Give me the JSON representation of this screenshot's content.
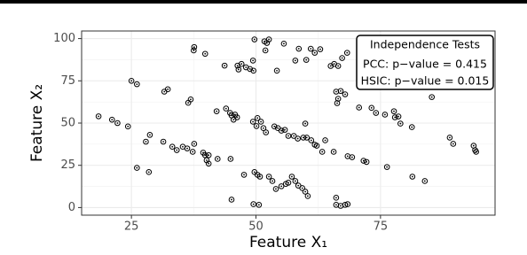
{
  "chart_data": {
    "type": "scatter",
    "x_label": "Feature X₁",
    "y_label": "Feature X₂",
    "legend_title": "Independence Tests",
    "annotations": [
      "PCC: p−value = 0.415",
      "HSIC: p−value = 0.015"
    ],
    "legend_position": "top-right",
    "xlim": [
      15,
      98
    ],
    "ylim": [
      -4.5,
      104.5
    ],
    "xticks": [
      25,
      50,
      75
    ],
    "yticks": [
      0,
      25,
      50,
      75,
      100
    ],
    "grid": true,
    "color": "#000000",
    "series": [
      {
        "name": null,
        "x": [
          18.4,
          21.1,
          22.2,
          24.3,
          25,
          26.1,
          26.1,
          28.5,
          27.9,
          28.7,
          31.4,
          33.2,
          34.1,
          35.3,
          36.2,
          37.3,
          37.6,
          39.4,
          39.8,
          40.1,
          40.5,
          40.5,
          42.3,
          31.6,
          32.3,
          36.4,
          36.9,
          37.5,
          37.6,
          39.8,
          42.1,
          43.7,
          44,
          44.8,
          45.1,
          45.8,
          45.5,
          46.3,
          46.5,
          47.1,
          48,
          48.8,
          49.5,
          49.4,
          49.7,
          51.7,
          46.2,
          44.9,
          45.1,
          47.6,
          49.4,
          50.1,
          51,
          51.5,
          52,
          53.7,
          54.4,
          55.1,
          55.8,
          49.7,
          50.3,
          50.8,
          52.6,
          53.3,
          54,
          55.1,
          56,
          56.5,
          57.2,
          57.9,
          58.5,
          59.3,
          59.9,
          60.4,
          49.5,
          50.6,
          51.9,
          52.2,
          52.6,
          54.2,
          55.6,
          57.9,
          58.6,
          60.1,
          61,
          61.8,
          62.9,
          59.9,
          56.5,
          57.6,
          58.4,
          59.5,
          60.2,
          61.1,
          61.8,
          63.3,
          63.9,
          65.6,
          66.1,
          67,
          67.9,
          65,
          65.7,
          66.5,
          67.3,
          68.3,
          66.5,
          66.3,
          62.2,
          66.1,
          66.1,
          67,
          67.9,
          68.4,
          68.4,
          69.3,
          71.6,
          70.7,
          72.2,
          73.2,
          74.1,
          75.9,
          77.9,
          77.7,
          78.6,
          76.3,
          79,
          81.3,
          81.4,
          83.9,
          85.3,
          88.9,
          89.6,
          93.7,
          94,
          94.2,
          50.3
        ],
        "values": [
          54,
          52,
          50,
          48,
          75,
          73,
          23.5,
          21,
          39,
          43,
          39,
          36,
          34,
          36,
          35,
          33,
          37.7,
          32.5,
          31,
          28,
          31,
          26,
          28.8,
          68.6,
          70,
          62,
          64,
          93,
          95,
          91,
          57,
          84,
          58.6,
          56,
          54.5,
          55,
          52,
          84,
          81.7,
          85,
          83,
          82,
          81,
          87,
          99.5,
          98.4,
          53.4,
          28.8,
          4.7,
          19.4,
          50.8,
          48.2,
          50.8,
          47,
          44.5,
          48,
          47,
          45.5,
          46,
          21,
          19.4,
          18.3,
          18.3,
          15.7,
          11,
          12.6,
          14,
          14.7,
          18.3,
          15.7,
          13,
          11.5,
          9.4,
          6.8,
          2,
          1.6,
          93,
          97.4,
          99.5,
          81,
          97,
          87,
          94,
          87.4,
          94,
          91.6,
          93.7,
          49.7,
          42.4,
          42.4,
          40.8,
          41.4,
          41.4,
          39.8,
          37.2,
          33,
          39.8,
          33,
          68.6,
          69,
          67,
          83.8,
          85,
          83.8,
          88.5,
          91.6,
          64.4,
          61.8,
          36.6,
          5.8,
          1.6,
          1,
          1.6,
          2,
          30.4,
          29.8,
          27.7,
          59.2,
          27,
          59,
          56,
          55,
          53.4,
          57,
          53.9,
          24,
          49.7,
          47.6,
          18.3,
          15.7,
          65.4,
          41.4,
          37.7,
          36.6,
          34,
          33,
          53
        ]
      }
    ]
  }
}
